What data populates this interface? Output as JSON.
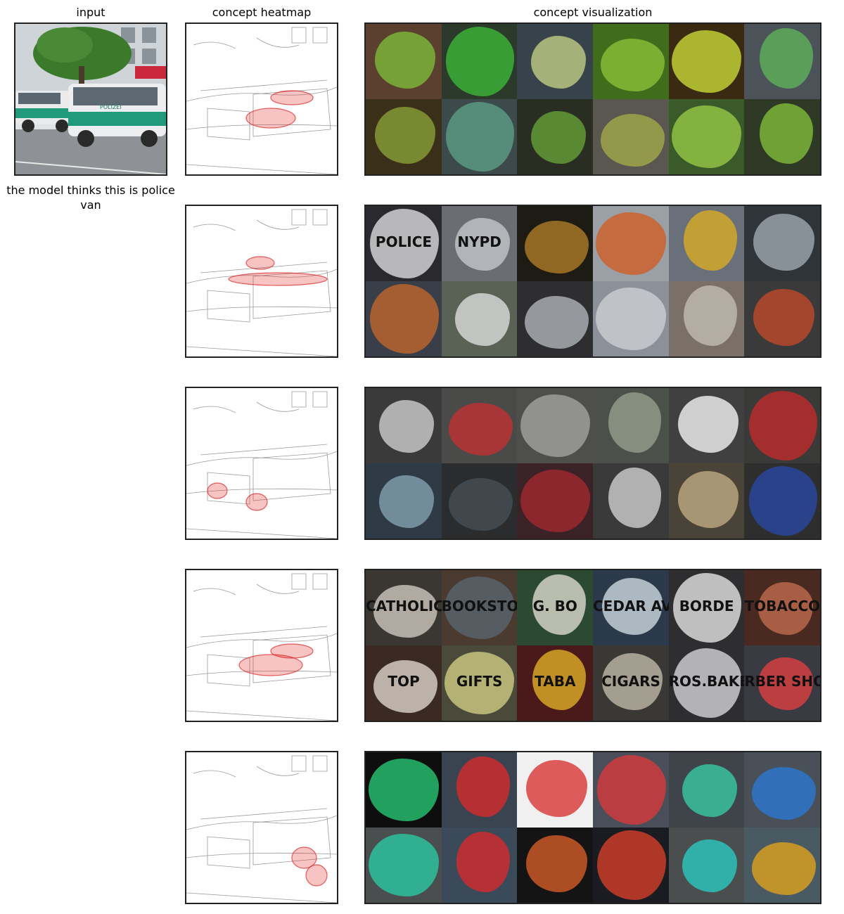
{
  "headers": {
    "input": "input",
    "heatmap": "concept heatmap",
    "visualization": "concept visualization"
  },
  "prediction_caption": "the model thinks this is police van",
  "input_image": {
    "sign_text": "POLIZEI"
  },
  "concept_rows": [
    {
      "heatmap_focus": "car-body",
      "tiles": [
        {
          "bg": "#5b4030",
          "fg": "#7fc23a",
          "text": ""
        },
        {
          "bg": "#2b3a2a",
          "fg": "#3fbf3a",
          "text": ""
        },
        {
          "bg": "#38424a",
          "fg": "#c9d78a",
          "text": ""
        },
        {
          "bg": "#3f6d1c",
          "fg": "#8fc63a",
          "text": ""
        },
        {
          "bg": "#3a2a12",
          "fg": "#d3e43a",
          "text": ""
        },
        {
          "bg": "#4b5258",
          "fg": "#5fb85a",
          "text": ""
        },
        {
          "bg": "#3a2f18",
          "fg": "#8da83a",
          "text": ""
        },
        {
          "bg": "#3c4a4c",
          "fg": "#5fa38a",
          "text": ""
        },
        {
          "bg": "#2a2e22",
          "fg": "#6aa83a",
          "text": ""
        },
        {
          "bg": "#5a5750",
          "fg": "#a8ad4a",
          "text": ""
        },
        {
          "bg": "#3b5a2a",
          "fg": "#9cd04a",
          "text": ""
        },
        {
          "bg": "#2e3a26",
          "fg": "#86c43a",
          "text": ""
        }
      ]
    },
    {
      "heatmap_focus": "windows",
      "tiles": [
        {
          "bg": "#2a2a2e",
          "fg": "#e8e8ea",
          "text": "POLICE"
        },
        {
          "bg": "#6a6e72",
          "fg": "#c9ccd0",
          "text": "NYPD"
        },
        {
          "bg": "#1e1a14",
          "fg": "#b8822a",
          "text": ""
        },
        {
          "bg": "#9aa0a6",
          "fg": "#d25a1e",
          "text": ""
        },
        {
          "bg": "#6a707a",
          "fg": "#e0b020",
          "text": ""
        },
        {
          "bg": "#2e3438",
          "fg": "#a8b0b8",
          "text": ""
        },
        {
          "bg": "#3a3e48",
          "fg": "#c86a2a",
          "text": ""
        },
        {
          "bg": "#5a6256",
          "fg": "#e6e6e6",
          "text": ""
        },
        {
          "bg": "#2e2e30",
          "fg": "#b8bcc0",
          "text": ""
        },
        {
          "bg": "#8c9098",
          "fg": "#d0d4d8",
          "text": ""
        },
        {
          "bg": "#7a7068",
          "fg": "#c8c2b8",
          "text": ""
        },
        {
          "bg": "#3a3a3a",
          "fg": "#c84a2a",
          "text": ""
        }
      ]
    },
    {
      "heatmap_focus": "wheels",
      "tiles": [
        {
          "bg": "#3a3a3a",
          "fg": "#d8d8d8",
          "text": ""
        },
        {
          "bg": "#4a4a48",
          "fg": "#c83030",
          "text": ""
        },
        {
          "bg": "#4e4e4c",
          "fg": "#a8a8a4",
          "text": ""
        },
        {
          "bg": "#4c504a",
          "fg": "#9aa392",
          "text": ""
        },
        {
          "bg": "#404040",
          "fg": "#ffffff",
          "text": ""
        },
        {
          "bg": "#3a3a38",
          "fg": "#c82a2a",
          "text": ""
        },
        {
          "bg": "#2e3a46",
          "fg": "#8aa8b8",
          "text": ""
        },
        {
          "bg": "#2a2c2e",
          "fg": "#4a5258",
          "text": ""
        },
        {
          "bg": "#3a2226",
          "fg": "#a82a32",
          "text": ""
        },
        {
          "bg": "#3a3a3a",
          "fg": "#dadada",
          "text": ""
        },
        {
          "bg": "#4a4438",
          "fg": "#c8b088",
          "text": ""
        },
        {
          "bg": "#2e2e2e",
          "fg": "#2a4aa8",
          "text": ""
        }
      ]
    },
    {
      "heatmap_focus": "lettering",
      "tiles": [
        {
          "bg": "#3a3632",
          "fg": "#d8d2c8",
          "text": "CATHOLIC"
        },
        {
          "bg": "#4a3a30",
          "fg": "#5a6a74",
          "text": "BOOKSTORE"
        },
        {
          "bg": "#2c4a32",
          "fg": "#e8e4d8",
          "text": "G. BO"
        },
        {
          "bg": "#2a3a4a",
          "fg": "#d8e4ec",
          "text": "CEDAR AVE"
        },
        {
          "bg": "#2e2e30",
          "fg": "#f0f0f0",
          "text": "BORDE"
        },
        {
          "bg": "#4a2a20",
          "fg": "#c87050",
          "text": "TOBACCO"
        },
        {
          "bg": "#3a2a22",
          "fg": "#e8e0d8",
          "text": "TOP"
        },
        {
          "bg": "#4a4a3a",
          "fg": "#d8d48a",
          "text": "GIFTS"
        },
        {
          "bg": "#4a1a1a",
          "fg": "#e8b828",
          "text": "TABA"
        },
        {
          "bg": "#3a3834",
          "fg": "#c8c0b0",
          "text": "CIGARS"
        },
        {
          "bg": "#2e2e32",
          "fg": "#e0e0e4",
          "text": "ROS.BAKERY"
        },
        {
          "bg": "#3a3a42",
          "fg": "#e84040",
          "text": "RBER SHOP"
        }
      ]
    },
    {
      "heatmap_focus": "lights",
      "tiles": [
        {
          "bg": "#0e0e0e",
          "fg": "#2ad27a",
          "text": ""
        },
        {
          "bg": "#3a4450",
          "fg": "#e02a2a",
          "text": ""
        },
        {
          "bg": "#f0f0f0",
          "fg": "#d82a2a",
          "text": ""
        },
        {
          "bg": "#4a4e58",
          "fg": "#e03a3a",
          "text": ""
        },
        {
          "bg": "#3e444a",
          "fg": "#3ad2a8",
          "text": ""
        },
        {
          "bg": "#4a5058",
          "fg": "#2a7ad8",
          "text": ""
        },
        {
          "bg": "#4a4e4e",
          "fg": "#2ad2a8",
          "text": ""
        },
        {
          "bg": "#3a4a58",
          "fg": "#e02a2a",
          "text": ""
        },
        {
          "bg": "#141414",
          "fg": "#e0602a",
          "text": ""
        },
        {
          "bg": "#1a1c22",
          "fg": "#e0402a",
          "text": ""
        },
        {
          "bg": "#4a4e4e",
          "fg": "#2ad2c8",
          "text": ""
        },
        {
          "bg": "#4a5a62",
          "fg": "#e8a81a",
          "text": ""
        }
      ]
    }
  ]
}
